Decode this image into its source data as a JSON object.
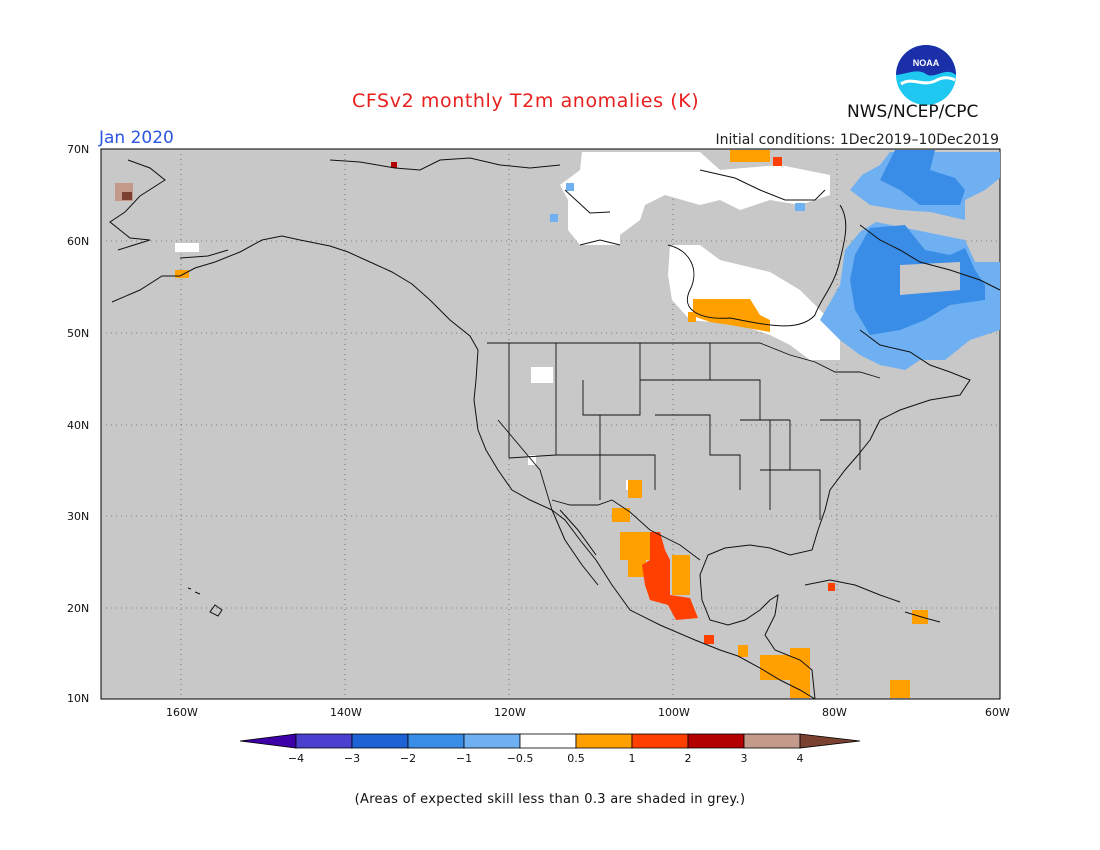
{
  "title": "CFSv2 monthly T2m anomalies (K)",
  "valid_month": "Jan 2020",
  "initial_conditions": "Initial conditions: 1Dec2019–10Dec2019",
  "agency": "NWS/NCEP/CPC",
  "logo_text": "NOAA",
  "lat_labels": [
    "70N",
    "60N",
    "50N",
    "40N",
    "30N",
    "20N",
    "10N"
  ],
  "lon_labels": [
    "160W",
    "140W",
    "120W",
    "100W",
    "80W",
    "60W"
  ],
  "colorbar": {
    "labels": [
      "−4",
      "−3",
      "−2",
      "−1",
      "−0.5",
      "0.5",
      "1",
      "2",
      "3",
      "4"
    ],
    "colors": [
      "#3d00a8",
      "#4b3fd0",
      "#1e63d6",
      "#3a8de6",
      "#6fb0f2",
      "#ffffff",
      "#ff9f00",
      "#ff4000",
      "#b30000",
      "#c49a8a",
      "#7a4030"
    ]
  },
  "skill_note": "(Areas of expected skill less than 0.3 are shaded in grey.)",
  "map_data": {
    "grey_color": "#c8c8c8",
    "anomaly_regions": [
      {
        "region": "Eastern Canada / Labrador / Quebec",
        "anomaly": "−2 to −1"
      },
      {
        "region": "Hudson Bay / Ontario north",
        "anomaly": "−0.5 to 0.5"
      },
      {
        "region": "Nunavut / Canadian Arctic",
        "anomaly": "−0.5 to 0.5"
      },
      {
        "region": "Northwest Ontario",
        "anomaly": "0.5 to 1"
      },
      {
        "region": "Mexico (central)",
        "anomaly": "1 to 2"
      },
      {
        "region": "Western Alaska tip",
        "anomaly": "3 to 4"
      },
      {
        "region": "Caribbean / Central America",
        "anomaly": "0.5 to 2"
      }
    ]
  }
}
